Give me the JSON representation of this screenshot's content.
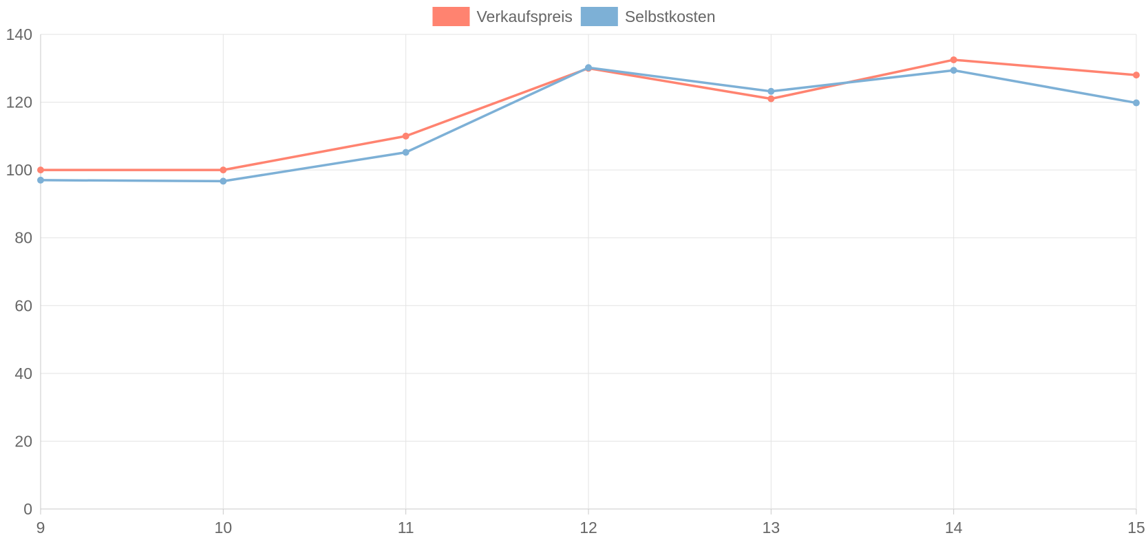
{
  "chart_data": {
    "type": "line",
    "title": "",
    "xlabel": "",
    "ylabel": "",
    "x": [
      9,
      10,
      11,
      12,
      13,
      14,
      15
    ],
    "ylim": [
      0,
      140
    ],
    "y_ticks": [
      0,
      20,
      40,
      60,
      80,
      100,
      120,
      140
    ],
    "grid": true,
    "legend_position": "top-center",
    "series": [
      {
        "name": "Verkaufspreis",
        "color": "#ff8370",
        "values": [
          100,
          100,
          110,
          130,
          121,
          132.5,
          128
        ]
      },
      {
        "name": "Selbstkosten",
        "color": "#7db0d6",
        "values": [
          97,
          96.7,
          105.2,
          130.2,
          123.2,
          129.4,
          119.8
        ]
      }
    ]
  }
}
